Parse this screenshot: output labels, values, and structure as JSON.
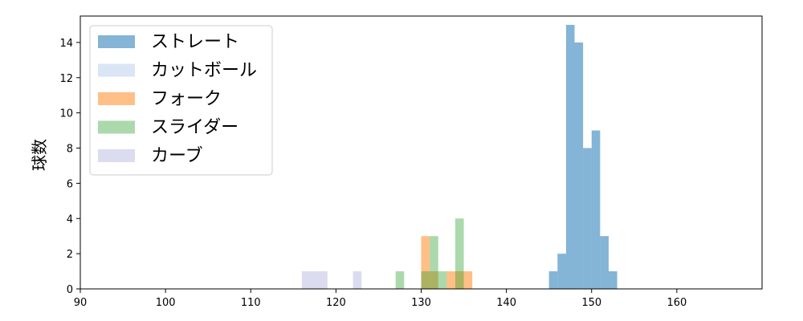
{
  "chart_data": {
    "type": "bar",
    "subtype": "histogram",
    "title": "",
    "xlabel": "",
    "ylabel": "球数",
    "xlim": [
      90,
      170
    ],
    "ylim": [
      0,
      15.5
    ],
    "xticks": [
      90,
      100,
      110,
      120,
      130,
      140,
      150,
      160
    ],
    "yticks": [
      0,
      2,
      4,
      6,
      8,
      10,
      12,
      14
    ],
    "grid": false,
    "legend_position": "top-left",
    "series": [
      {
        "name": "ストレート",
        "color": "#1f77b4",
        "alpha": 0.55,
        "bins": [
          {
            "x0": 145.0,
            "x1": 146.0,
            "count": 1
          },
          {
            "x0": 146.0,
            "x1": 147.0,
            "count": 2
          },
          {
            "x0": 147.0,
            "x1": 148.0,
            "count": 15
          },
          {
            "x0": 148.0,
            "x1": 149.0,
            "count": 14
          },
          {
            "x0": 149.0,
            "x1": 150.0,
            "count": 8
          },
          {
            "x0": 150.0,
            "x1": 151.0,
            "count": 9
          },
          {
            "x0": 151.0,
            "x1": 152.0,
            "count": 3
          },
          {
            "x0": 152.0,
            "x1": 153.0,
            "count": 1
          }
        ]
      },
      {
        "name": "カットボール",
        "color": "#aec7e8",
        "alpha": 0.45,
        "bins": []
      },
      {
        "name": "フォーク",
        "color": "#ff7f0e",
        "alpha": 0.5,
        "bins": [
          {
            "x0": 130.0,
            "x1": 131.0,
            "count": 3
          },
          {
            "x0": 131.0,
            "x1": 132.0,
            "count": 1
          },
          {
            "x0": 133.0,
            "x1": 134.0,
            "count": 1
          },
          {
            "x0": 134.0,
            "x1": 135.0,
            "count": 1
          },
          {
            "x0": 135.0,
            "x1": 136.0,
            "count": 1
          }
        ]
      },
      {
        "name": "スライダー",
        "color": "#2ca02c",
        "alpha": 0.4,
        "bins": [
          {
            "x0": 127.0,
            "x1": 128.0,
            "count": 1
          },
          {
            "x0": 130.0,
            "x1": 131.0,
            "count": 1
          },
          {
            "x0": 131.0,
            "x1": 132.0,
            "count": 3
          },
          {
            "x0": 132.0,
            "x1": 133.0,
            "count": 1
          },
          {
            "x0": 134.0,
            "x1": 135.0,
            "count": 4
          }
        ]
      },
      {
        "name": "カーブ",
        "color": "#c5c5e6",
        "alpha": 0.6,
        "bins": [
          {
            "x0": 116.0,
            "x1": 119.0,
            "count": 1
          },
          {
            "x0": 122.0,
            "x1": 123.0,
            "count": 1
          }
        ]
      }
    ]
  }
}
